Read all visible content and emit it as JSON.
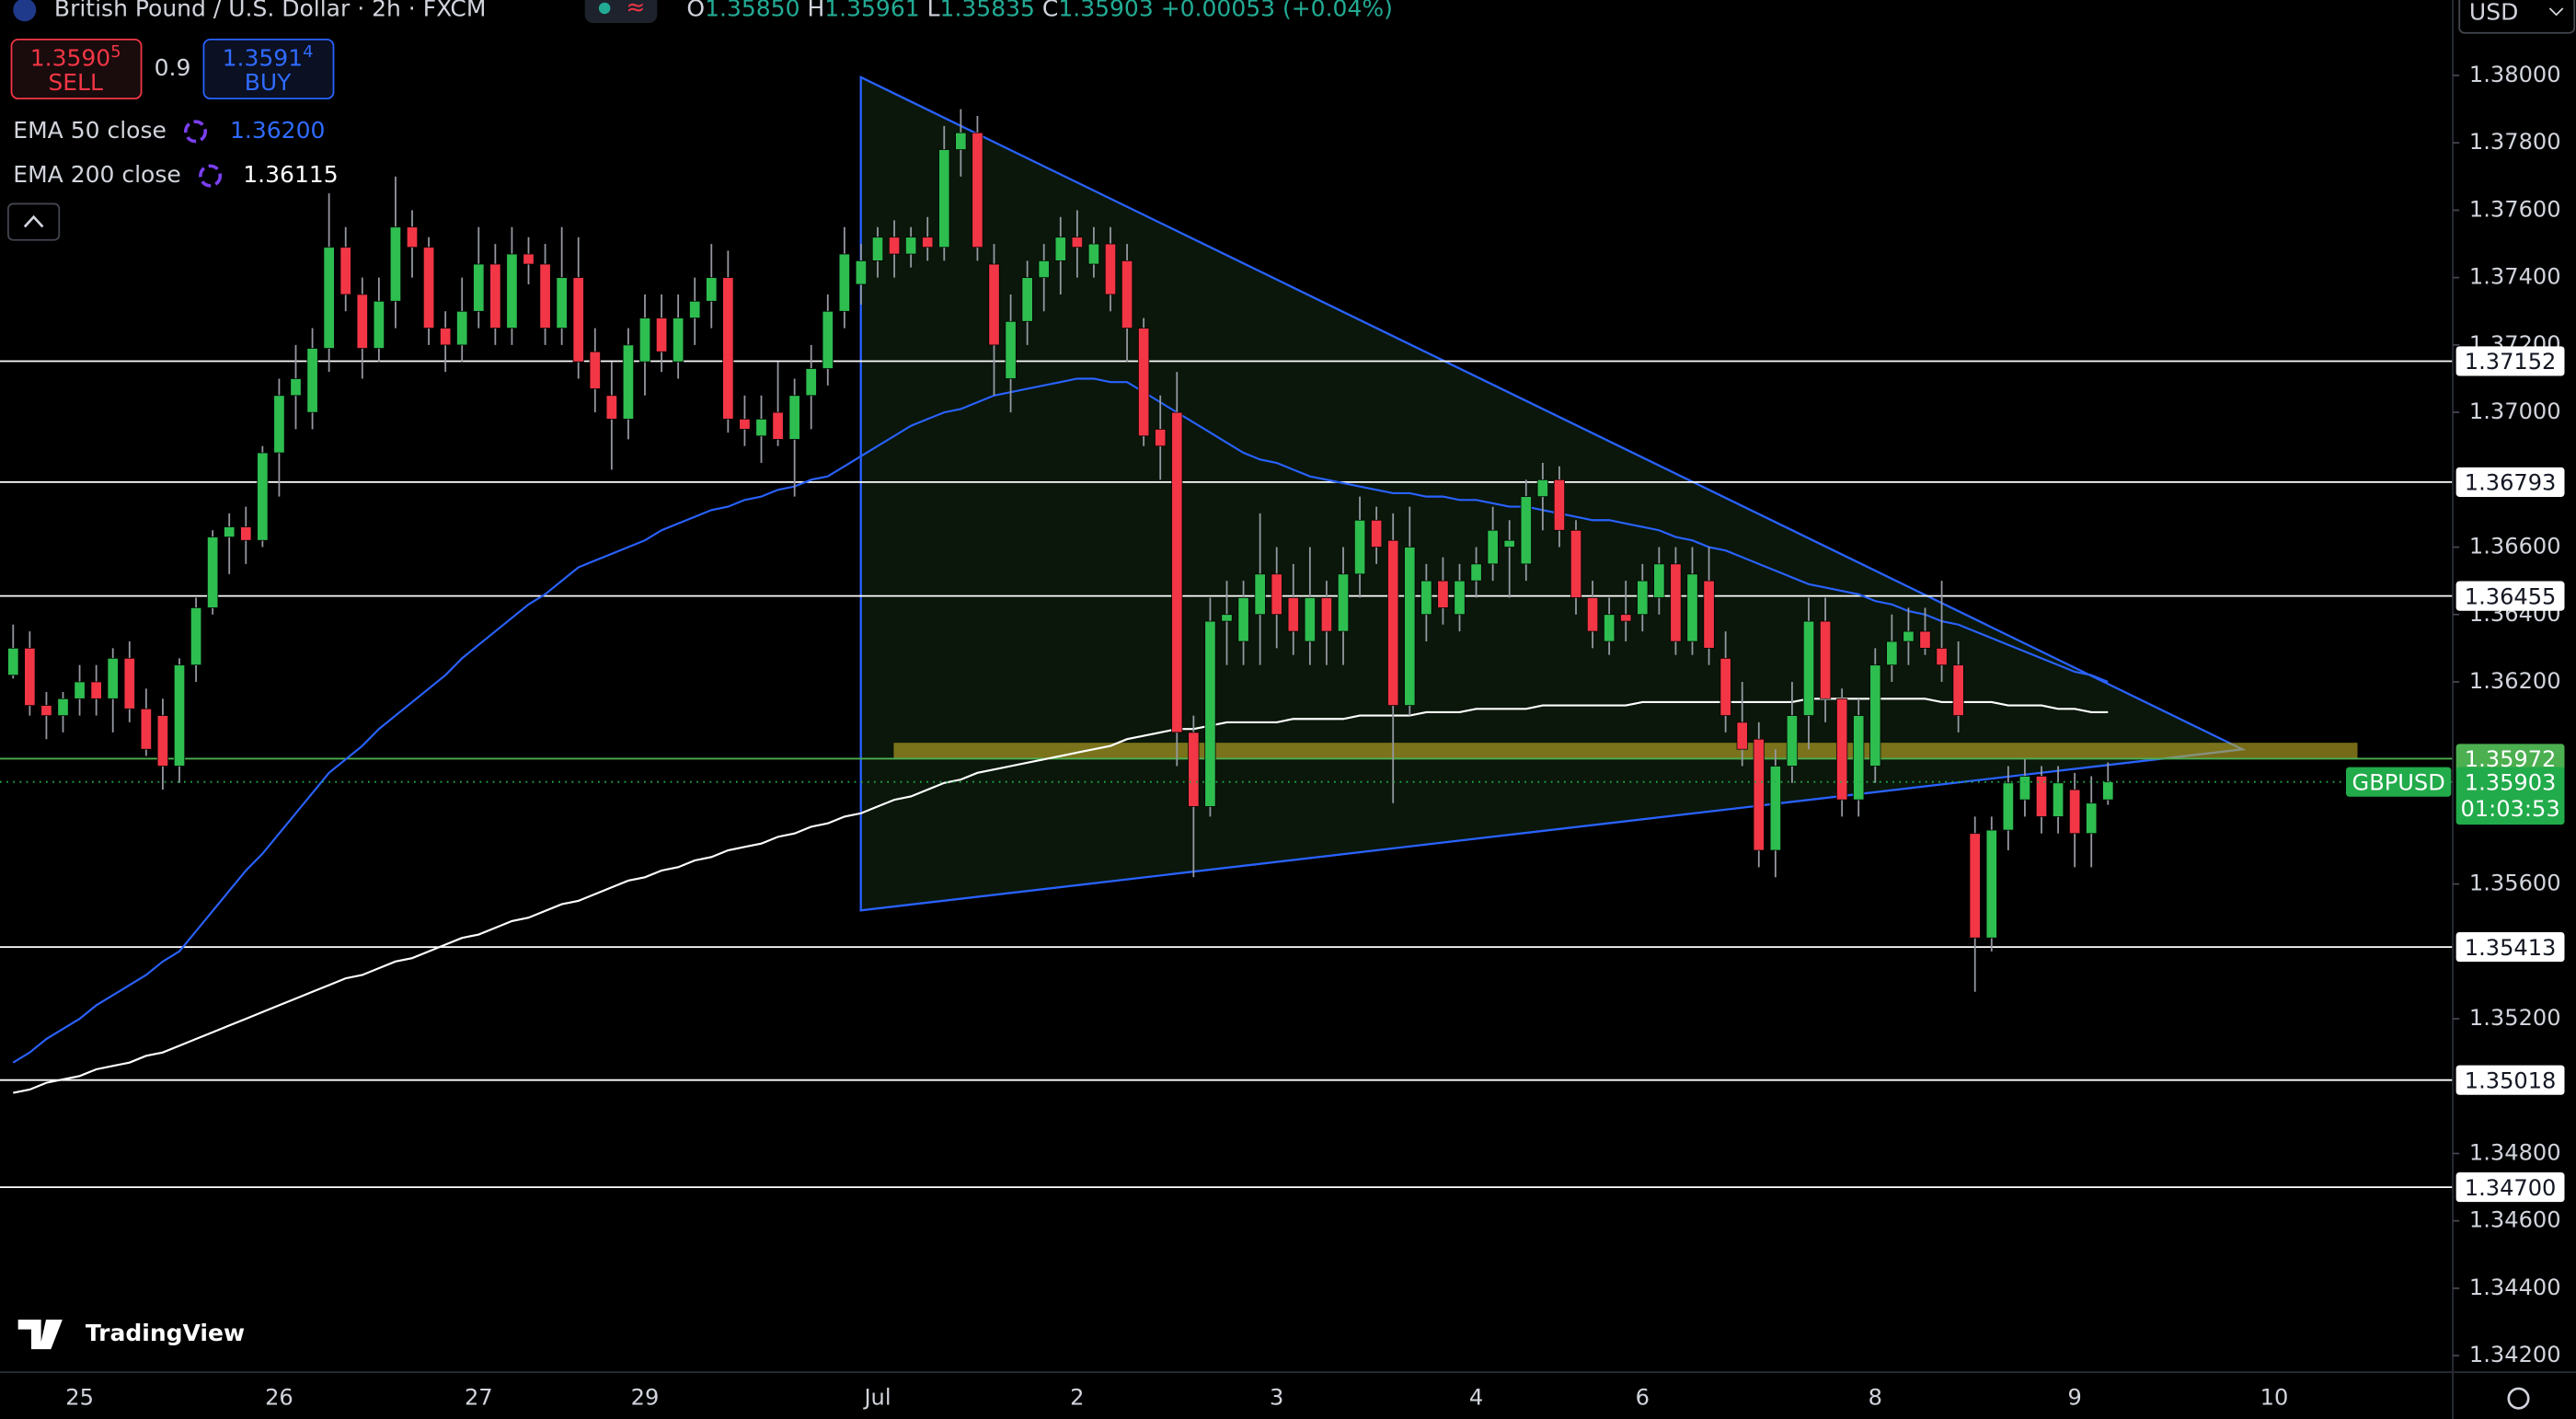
{
  "header": {
    "title": "British Pound / U.S. Dollar · 2h · FXCM",
    "ohlc": [
      {
        "key": "O",
        "value": "1.35850"
      },
      {
        "key": "H",
        "value": "1.35961"
      },
      {
        "key": "L",
        "value": "1.35835"
      },
      {
        "key": "C",
        "value": "1.35903"
      }
    ],
    "change": "+0.00053 (+0.04%)"
  },
  "trade": {
    "sell_price": "1.3590",
    "sell_pip": "5",
    "sell_label": "SELL",
    "spread": "0.9",
    "buy_price": "1.3591",
    "buy_pip": "4",
    "buy_label": "BUY"
  },
  "currency": "USD",
  "logo": "TradingView",
  "chart_data": {
    "type": "candlestick",
    "up_color": "#2ebd4f",
    "down_color": "#f23645",
    "grid": false,
    "categories": [
      null,
      null,
      null,
      null,
      "25",
      null,
      null,
      null,
      null,
      null,
      null,
      null,
      null,
      null,
      null,
      null,
      "26",
      null,
      null,
      null,
      null,
      null,
      null,
      null,
      null,
      null,
      null,
      null,
      "27",
      null,
      null,
      null,
      null,
      null,
      null,
      null,
      null,
      null,
      "29",
      null,
      null,
      null,
      null,
      null,
      null,
      null,
      null,
      null,
      null,
      null,
      null,
      null,
      "Jul",
      null,
      null,
      null,
      null,
      null,
      null,
      null,
      null,
      null,
      null,
      null,
      "2",
      null,
      null,
      null,
      null,
      null,
      null,
      null,
      null,
      null,
      null,
      null,
      "3",
      null,
      null,
      null,
      null,
      null,
      null,
      null,
      null,
      null,
      null,
      null,
      "4",
      null,
      null,
      null,
      null,
      null,
      null,
      null,
      null,
      null,
      "6",
      null,
      null,
      null,
      null,
      null,
      null,
      null,
      null,
      null,
      null,
      null,
      null,
      null,
      "8",
      null,
      null,
      null,
      null,
      null,
      null,
      null,
      null,
      null,
      null,
      null,
      "9",
      null,
      null,
      null,
      null,
      null,
      null,
      null,
      null,
      null,
      null,
      null,
      "10",
      null,
      null,
      null
    ],
    "candles": [
      [
        1.3622,
        1.3637,
        1.3621,
        1.363
      ],
      [
        1.363,
        1.3635,
        1.361,
        1.3613
      ],
      [
        1.3613,
        1.3617,
        1.3603,
        1.361
      ],
      [
        1.361,
        1.3617,
        1.3605,
        1.3615
      ],
      [
        1.3615,
        1.3625,
        1.361,
        1.362
      ],
      [
        1.362,
        1.3625,
        1.361,
        1.3615
      ],
      [
        1.3615,
        1.363,
        1.3605,
        1.3627
      ],
      [
        1.3627,
        1.3632,
        1.3608,
        1.3612
      ],
      [
        1.3612,
        1.3618,
        1.3598,
        1.36
      ],
      [
        1.361,
        1.3615,
        1.3588,
        1.3595
      ],
      [
        1.3595,
        1.3627,
        1.359,
        1.3625
      ],
      [
        1.3625,
        1.3645,
        1.362,
        1.3642
      ],
      [
        1.3642,
        1.3665,
        1.364,
        1.3663
      ],
      [
        1.3663,
        1.367,
        1.3652,
        1.3666
      ],
      [
        1.3666,
        1.3672,
        1.3655,
        1.3662
      ],
      [
        1.3662,
        1.369,
        1.366,
        1.3688
      ],
      [
        1.3688,
        1.371,
        1.3675,
        1.3705
      ],
      [
        1.3705,
        1.372,
        1.3695,
        1.371
      ],
      [
        1.37,
        1.3725,
        1.3695,
        1.3719
      ],
      [
        1.3719,
        1.3765,
        1.3712,
        1.3749
      ],
      [
        1.3749,
        1.3755,
        1.373,
        1.3735
      ],
      [
        1.3735,
        1.374,
        1.371,
        1.3719
      ],
      [
        1.3719,
        1.374,
        1.3715,
        1.3733
      ],
      [
        1.3733,
        1.377,
        1.3725,
        1.3755
      ],
      [
        1.3755,
        1.376,
        1.374,
        1.3749
      ],
      [
        1.3749,
        1.3752,
        1.372,
        1.3725
      ],
      [
        1.3725,
        1.373,
        1.3712,
        1.372
      ],
      [
        1.372,
        1.374,
        1.3715,
        1.373
      ],
      [
        1.373,
        1.3755,
        1.3725,
        1.3744
      ],
      [
        1.3744,
        1.375,
        1.372,
        1.3725
      ],
      [
        1.3725,
        1.3755,
        1.372,
        1.3747
      ],
      [
        1.3747,
        1.3752,
        1.3738,
        1.3744
      ],
      [
        1.3744,
        1.375,
        1.372,
        1.3725
      ],
      [
        1.3725,
        1.3755,
        1.372,
        1.374
      ],
      [
        1.374,
        1.3752,
        1.371,
        1.3715
      ],
      [
        1.3718,
        1.3725,
        1.37,
        1.3707
      ],
      [
        1.3705,
        1.3715,
        1.3683,
        1.3698
      ],
      [
        1.3698,
        1.3725,
        1.3692,
        1.372
      ],
      [
        1.3715,
        1.3735,
        1.3705,
        1.3728
      ],
      [
        1.3728,
        1.3735,
        1.3712,
        1.3718
      ],
      [
        1.3715,
        1.3735,
        1.371,
        1.3728
      ],
      [
        1.3728,
        1.374,
        1.372,
        1.3733
      ],
      [
        1.3733,
        1.375,
        1.3725,
        1.374
      ],
      [
        1.374,
        1.3748,
        1.3694,
        1.3698
      ],
      [
        1.3698,
        1.3705,
        1.369,
        1.3695
      ],
      [
        1.3693,
        1.3705,
        1.3685,
        1.3698
      ],
      [
        1.37,
        1.3715,
        1.369,
        1.3692
      ],
      [
        1.3692,
        1.371,
        1.3675,
        1.3705
      ],
      [
        1.3705,
        1.372,
        1.3695,
        1.3713
      ],
      [
        1.3713,
        1.3735,
        1.3708,
        1.373
      ],
      [
        1.373,
        1.3755,
        1.3725,
        1.3747
      ],
      [
        1.3738,
        1.375,
        1.3732,
        1.3745
      ],
      [
        1.3745,
        1.3755,
        1.374,
        1.3752
      ],
      [
        1.3752,
        1.3757,
        1.374,
        1.3747
      ],
      [
        1.3747,
        1.3755,
        1.3743,
        1.3752
      ],
      [
        1.3752,
        1.3758,
        1.3745,
        1.3749
      ],
      [
        1.3749,
        1.3785,
        1.3745,
        1.3778
      ],
      [
        1.3778,
        1.379,
        1.377,
        1.3783
      ],
      [
        1.3783,
        1.3788,
        1.3745,
        1.3749
      ],
      [
        1.3744,
        1.375,
        1.3705,
        1.372
      ],
      [
        1.371,
        1.3735,
        1.37,
        1.3727
      ],
      [
        1.3727,
        1.3745,
        1.372,
        1.374
      ],
      [
        1.374,
        1.375,
        1.373,
        1.3745
      ],
      [
        1.3745,
        1.3758,
        1.3735,
        1.3752
      ],
      [
        1.3752,
        1.376,
        1.374,
        1.3749
      ],
      [
        1.3744,
        1.3755,
        1.374,
        1.375
      ],
      [
        1.375,
        1.3755,
        1.373,
        1.3735
      ],
      [
        1.3745,
        1.375,
        1.3715,
        1.3725
      ],
      [
        1.3725,
        1.3728,
        1.369,
        1.3693
      ],
      [
        1.3695,
        1.3705,
        1.368,
        1.369
      ],
      [
        1.37,
        1.3712,
        1.3595,
        1.3605
      ],
      [
        1.3605,
        1.361,
        1.3562,
        1.3583
      ],
      [
        1.3583,
        1.3645,
        1.358,
        1.3638
      ],
      [
        1.3638,
        1.365,
        1.3625,
        1.364
      ],
      [
        1.3632,
        1.365,
        1.3625,
        1.3645
      ],
      [
        1.364,
        1.367,
        1.3625,
        1.3652
      ],
      [
        1.3652,
        1.366,
        1.363,
        1.364
      ],
      [
        1.3645,
        1.3655,
        1.3628,
        1.3635
      ],
      [
        1.3632,
        1.366,
        1.3625,
        1.3645
      ],
      [
        1.3645,
        1.365,
        1.3625,
        1.3635
      ],
      [
        1.3635,
        1.366,
        1.3625,
        1.3652
      ],
      [
        1.3652,
        1.3675,
        1.3645,
        1.3668
      ],
      [
        1.3668,
        1.3672,
        1.3655,
        1.366
      ],
      [
        1.3662,
        1.367,
        1.3584,
        1.3613
      ],
      [
        1.3613,
        1.3672,
        1.361,
        1.366
      ],
      [
        1.364,
        1.3655,
        1.3632,
        1.365
      ],
      [
        1.365,
        1.3657,
        1.3637,
        1.3642
      ],
      [
        1.364,
        1.3655,
        1.3635,
        1.365
      ],
      [
        1.365,
        1.366,
        1.3645,
        1.3655
      ],
      [
        1.3655,
        1.3672,
        1.365,
        1.3665
      ],
      [
        1.366,
        1.3668,
        1.3645,
        1.3662
      ],
      [
        1.3655,
        1.368,
        1.365,
        1.3675
      ],
      [
        1.3675,
        1.3685,
        1.3665,
        1.368
      ],
      [
        1.368,
        1.3684,
        1.366,
        1.3665
      ],
      [
        1.3665,
        1.3668,
        1.364,
        1.3645
      ],
      [
        1.3645,
        1.365,
        1.363,
        1.3635
      ],
      [
        1.3632,
        1.3645,
        1.3628,
        1.364
      ],
      [
        1.364,
        1.365,
        1.3632,
        1.3638
      ],
      [
        1.364,
        1.3655,
        1.3635,
        1.365
      ],
      [
        1.3645,
        1.366,
        1.364,
        1.3655
      ],
      [
        1.3655,
        1.366,
        1.3628,
        1.3632
      ],
      [
        1.3632,
        1.366,
        1.3628,
        1.3652
      ],
      [
        1.365,
        1.366,
        1.3625,
        1.363
      ],
      [
        1.3627,
        1.3635,
        1.3605,
        1.361
      ],
      [
        1.3608,
        1.362,
        1.3595,
        1.36
      ],
      [
        1.3603,
        1.3608,
        1.3565,
        1.357
      ],
      [
        1.357,
        1.36,
        1.3562,
        1.3595
      ],
      [
        1.3595,
        1.362,
        1.359,
        1.361
      ],
      [
        1.361,
        1.3645,
        1.36,
        1.3638
      ],
      [
        1.3638,
        1.3645,
        1.3608,
        1.3615
      ],
      [
        1.3615,
        1.3618,
        1.358,
        1.3585
      ],
      [
        1.3585,
        1.3615,
        1.358,
        1.361
      ],
      [
        1.3595,
        1.363,
        1.359,
        1.3625
      ],
      [
        1.3625,
        1.364,
        1.362,
        1.3632
      ],
      [
        1.3632,
        1.3642,
        1.3625,
        1.3635
      ],
      [
        1.3635,
        1.3642,
        1.3628,
        1.363
      ],
      [
        1.363,
        1.365,
        1.362,
        1.3625
      ],
      [
        1.3625,
        1.3632,
        1.3605,
        1.361
      ],
      [
        1.3575,
        1.358,
        1.3528,
        1.3544
      ],
      [
        1.3544,
        1.358,
        1.354,
        1.3576
      ],
      [
        1.3576,
        1.3595,
        1.357,
        1.359
      ],
      [
        1.3585,
        1.3597,
        1.358,
        1.3592
      ],
      [
        1.3592,
        1.3595,
        1.3575,
        1.358
      ],
      [
        1.358,
        1.3595,
        1.3575,
        1.359
      ],
      [
        1.3588,
        1.3593,
        1.3565,
        1.3575
      ],
      [
        1.3575,
        1.3592,
        1.3565,
        1.3584
      ],
      [
        1.3585,
        1.35961,
        1.35835,
        1.35903
      ],
      null,
      null,
      null,
      null,
      null,
      null,
      null,
      null,
      null,
      null,
      null,
      null,
      null
    ],
    "series": [
      {
        "name": "EMA 50 close",
        "color": "#2962ff",
        "last_label": "1.36200",
        "values": [
          1.3507,
          1.351,
          1.3514,
          1.3517,
          1.352,
          1.3524,
          1.3527,
          1.353,
          1.3533,
          1.3537,
          1.354,
          1.3546,
          1.3552,
          1.3558,
          1.3564,
          1.3569,
          1.3575,
          1.3581,
          1.3587,
          1.3593,
          1.3597,
          1.3601,
          1.3606,
          1.361,
          1.3614,
          1.3618,
          1.3622,
          1.3627,
          1.3631,
          1.3635,
          1.3639,
          1.3643,
          1.3646,
          1.365,
          1.3654,
          1.3656,
          1.3658,
          1.366,
          1.3662,
          1.3665,
          1.3667,
          1.3669,
          1.3671,
          1.3672,
          1.3674,
          1.3675,
          1.3677,
          1.3678,
          1.368,
          1.3681,
          1.3684,
          1.3687,
          1.369,
          1.3693,
          1.3696,
          1.3698,
          1.37,
          1.3701,
          1.3703,
          1.3705,
          1.3706,
          1.3707,
          1.3708,
          1.3709,
          1.371,
          1.371,
          1.3709,
          1.3709,
          1.3706,
          1.3703,
          1.37,
          1.3697,
          1.3694,
          1.3691,
          1.3688,
          1.3686,
          1.3685,
          1.3683,
          1.3681,
          1.368,
          1.3679,
          1.3678,
          1.3677,
          1.3676,
          1.3676,
          1.3675,
          1.3675,
          1.3674,
          1.3674,
          1.3673,
          1.3672,
          1.3672,
          1.3671,
          1.367,
          1.3669,
          1.3668,
          1.3668,
          1.3667,
          1.3666,
          1.3665,
          1.3663,
          1.3662,
          1.366,
          1.3659,
          1.3657,
          1.3655,
          1.3653,
          1.3651,
          1.3649,
          1.3648,
          1.3647,
          1.3646,
          1.3644,
          1.3643,
          1.3641,
          1.364,
          1.3638,
          1.3637,
          1.3635,
          1.3633,
          1.3631,
          1.3629,
          1.3627,
          1.3625,
          1.3623,
          1.3622,
          1.362,
          null,
          null,
          null,
          null,
          null,
          null,
          null,
          null,
          null,
          null,
          null,
          null,
          null
        ]
      },
      {
        "name": "EMA 200 close",
        "color": "#ffffff",
        "last_label": "1.36115",
        "values": [
          1.3498,
          1.3499,
          1.3501,
          1.3502,
          1.3503,
          1.3505,
          1.3506,
          1.3507,
          1.3509,
          1.351,
          1.3512,
          1.3514,
          1.3516,
          1.3518,
          1.352,
          1.3522,
          1.3524,
          1.3526,
          1.3528,
          1.353,
          1.3532,
          1.3533,
          1.3535,
          1.3537,
          1.3538,
          1.354,
          1.3542,
          1.3544,
          1.3545,
          1.3547,
          1.3549,
          1.355,
          1.3552,
          1.3554,
          1.3555,
          1.3557,
          1.3559,
          1.3561,
          1.3562,
          1.3564,
          1.3565,
          1.3567,
          1.3568,
          1.357,
          1.3571,
          1.3572,
          1.3574,
          1.3575,
          1.3577,
          1.3578,
          1.358,
          1.3581,
          1.3583,
          1.3585,
          1.3586,
          1.3588,
          1.359,
          1.3591,
          1.3593,
          1.3594,
          1.3595,
          1.3596,
          1.3597,
          1.3598,
          1.3599,
          1.36,
          1.3601,
          1.3603,
          1.3604,
          1.3605,
          1.3606,
          1.3606,
          1.3607,
          1.3608,
          1.3608,
          1.3608,
          1.3608,
          1.3609,
          1.3609,
          1.3609,
          1.3609,
          1.361,
          1.361,
          1.361,
          1.361,
          1.3611,
          1.3611,
          1.3611,
          1.3612,
          1.3612,
          1.3612,
          1.3612,
          1.3613,
          1.3613,
          1.3613,
          1.3613,
          1.3613,
          1.3613,
          1.3614,
          1.3614,
          1.3614,
          1.3614,
          1.3614,
          1.3614,
          1.3614,
          1.3614,
          1.3614,
          1.3614,
          1.3615,
          1.3615,
          1.3615,
          1.3615,
          1.3615,
          1.3615,
          1.3615,
          1.3615,
          1.3614,
          1.3614,
          1.3614,
          1.3614,
          1.3613,
          1.3613,
          1.3613,
          1.3612,
          1.3612,
          1.3611,
          1.3611,
          null,
          null,
          null,
          null,
          null,
          null,
          null,
          null,
          null,
          null,
          null,
          null,
          null
        ]
      }
    ],
    "ylim": [
      1.34151,
      1.38224
    ],
    "yticks": [
      {
        "value": 1.38,
        "label": "1.38000"
      },
      {
        "value": 1.378,
        "label": "1.37800"
      },
      {
        "value": 1.376,
        "label": "1.37600"
      },
      {
        "value": 1.374,
        "label": "1.37400"
      },
      {
        "value": 1.372,
        "label": "1.37200"
      },
      {
        "value": 1.37,
        "label": "1.37000"
      },
      {
        "value": 1.366,
        "label": "1.36600"
      },
      {
        "value": 1.364,
        "label": "1.36400"
      },
      {
        "value": 1.362,
        "label": "1.36200"
      },
      {
        "value": 1.356,
        "label": "1.35600"
      },
      {
        "value": 1.352,
        "label": "1.35200"
      },
      {
        "value": 1.348,
        "label": "1.34800"
      },
      {
        "value": 1.346,
        "label": "1.34600"
      },
      {
        "value": 1.344,
        "label": "1.34400"
      },
      {
        "value": 1.342,
        "label": "1.34200"
      }
    ],
    "levels": [
      {
        "value": 1.37152,
        "color": "#ffffff"
      },
      {
        "value": 1.36793,
        "color": "#ffffff"
      },
      {
        "value": 1.36455,
        "color": "#ffffff"
      },
      {
        "value": 1.35972,
        "color": "#4caf50"
      },
      {
        "value": 1.35413,
        "color": "#ffffff"
      },
      {
        "value": 1.35018,
        "color": "#ffffff"
      },
      {
        "value": {
          "value": 1.347,
          "label": "1.34700"
        },
        "color": "#ffffff"
      }
    ],
    "price": {
      "symbol": "GBPUSD",
      "value": 1.35903,
      "countdown": "01:03:53",
      "color": "#22ab4a"
    }
  }
}
